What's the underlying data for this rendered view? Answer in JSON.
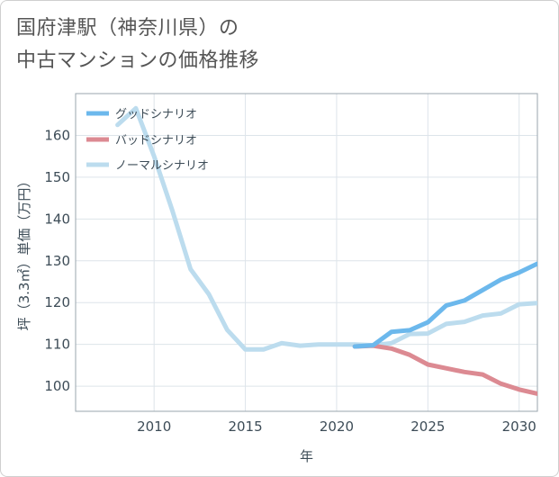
{
  "title": {
    "line1": "国府津駅（神奈川県）の",
    "line2": "中古マンションの価格推移"
  },
  "chart_data": {
    "type": "line",
    "title": "国府津駅（神奈川県）の中古マンションの価格推移",
    "xlabel": "年",
    "ylabel": "坪（3.3㎡）単価（万円）",
    "xlim": [
      2005.7,
      2031
    ],
    "ylim": [
      94,
      170
    ],
    "xticks": [
      2010,
      2015,
      2020,
      2025,
      2030
    ],
    "yticks": [
      100,
      110,
      120,
      130,
      140,
      150,
      160
    ],
    "grid": true,
    "legend_position": "top-left",
    "series": [
      {
        "name": "グッドシナリオ",
        "color": "#6cb8ec",
        "x": [
          2021,
          2022,
          2023,
          2024,
          2025,
          2026,
          2027,
          2028,
          2029,
          2030,
          2031
        ],
        "y": [
          109.5,
          109.8,
          113.0,
          113.4,
          115.3,
          119.3,
          120.5,
          123.0,
          125.5,
          127.2,
          129.3
        ]
      },
      {
        "name": "バッドシナリオ",
        "color": "#dc8a92",
        "x": [
          2021,
          2022,
          2023,
          2024,
          2025,
          2026,
          2027,
          2028,
          2029,
          2030,
          2031
        ],
        "y": [
          109.5,
          109.7,
          109.0,
          107.5,
          105.2,
          104.3,
          103.4,
          102.8,
          100.6,
          99.2,
          98.2
        ]
      },
      {
        "name": "ノーマルシナリオ",
        "color": "#bcdcee",
        "x": [
          2008,
          2009,
          2010,
          2011,
          2012,
          2013,
          2014,
          2015,
          2016,
          2017,
          2018,
          2019,
          2020,
          2021,
          2022,
          2023,
          2024,
          2025,
          2026,
          2027,
          2028,
          2029,
          2030,
          2031
        ],
        "y": [
          162.5,
          166.5,
          155.0,
          142.0,
          128.0,
          122.0,
          113.5,
          108.8,
          108.8,
          110.3,
          109.7,
          110.0,
          110.0,
          110.0,
          109.8,
          110.3,
          112.5,
          112.6,
          114.9,
          115.4,
          116.9,
          117.4,
          119.6,
          119.9
        ]
      }
    ]
  }
}
